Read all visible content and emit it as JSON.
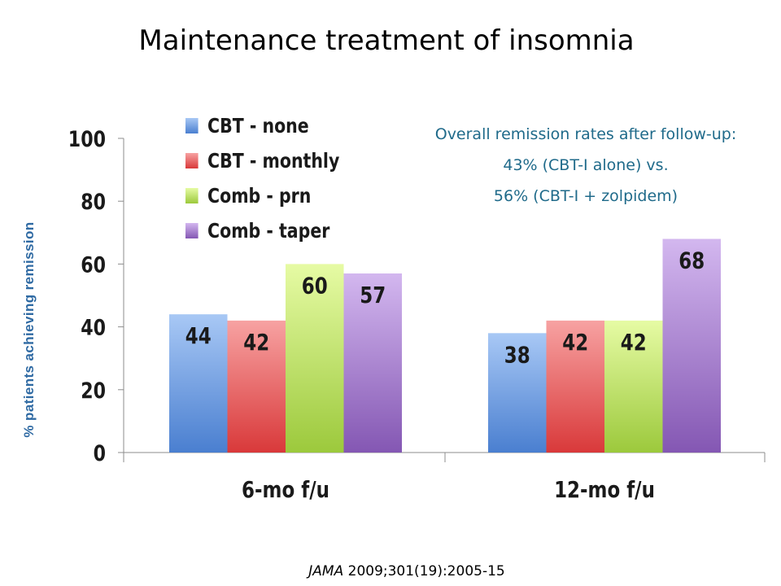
{
  "title": "Maintenance treatment of insomnia",
  "annotation": {
    "line1": "Overall remission rates after follow-up:",
    "line2": "43% (CBT-I alone) vs.",
    "line3": "56% (CBT-I + zolpidem)"
  },
  "citation": {
    "journal": "JAMA",
    "ref": " 2009;301(19):2005-15"
  },
  "chart_data": {
    "type": "bar",
    "title": "Maintenance treatment of insomnia",
    "ylabel": "% patients achieving remission",
    "xlabel": "",
    "categories": [
      "6-mo f/u",
      "12-mo f/u"
    ],
    "ylim": [
      0,
      100
    ],
    "yticks": [
      0,
      20,
      40,
      60,
      80,
      100
    ],
    "grid": false,
    "legend_position": "top-left",
    "series": [
      {
        "name": "CBT - none",
        "values": [
          44,
          38
        ],
        "color": "#4a7fd0",
        "light": "#a8c8f5"
      },
      {
        "name": "CBT - monthly",
        "values": [
          42,
          42
        ],
        "color": "#d9393a",
        "light": "#f7a2a2"
      },
      {
        "name": "Comb - prn",
        "values": [
          60,
          42
        ],
        "color": "#9cc93c",
        "light": "#e6fba4"
      },
      {
        "name": "Comb - taper",
        "values": [
          57,
          68
        ],
        "color": "#8457b3",
        "light": "#d3b7ef"
      }
    ]
  }
}
